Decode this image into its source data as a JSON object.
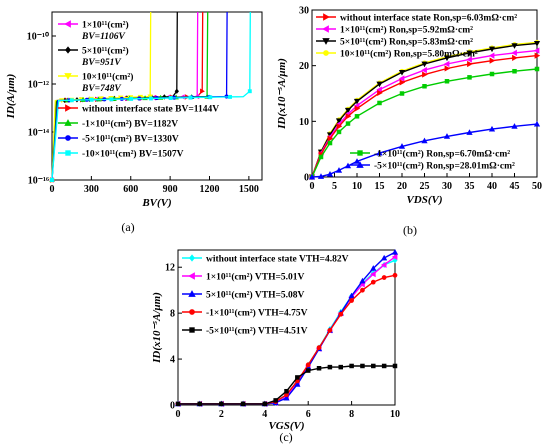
{
  "chart_data": [
    {
      "panel": "(a)",
      "type": "line",
      "xlabel": "BV(V)",
      "ylabel": "ID(A/μm)",
      "xlim": [
        0,
        1600
      ],
      "ylim": [
        1e-16,
        1e-09
      ],
      "yscale": "log",
      "xticks": [
        "0",
        "300",
        "600",
        "900",
        "1200",
        "1500"
      ],
      "yticks": [
        "10⁻¹⁶",
        "10⁻¹⁴",
        "10⁻¹²",
        "10⁻¹⁰"
      ],
      "legend_top": [
        {
          "label": "1×10¹¹(cm²)",
          "sub": "BV=1106V",
          "color": "#ff00ff",
          "marker": "triangle-left"
        },
        {
          "label": "5×10¹¹(cm²)",
          "sub": "BV=951V",
          "color": "#000000",
          "marker": "diamond"
        },
        {
          "label": "10×10¹¹(cm²)",
          "sub": "BV=748V",
          "color": "#ffff00",
          "marker": "triangle-down"
        }
      ],
      "legend_bottom": [
        {
          "label": "without interface state",
          "sub": "BV=1144V",
          "color": "#ff0000",
          "marker": "triangle-right"
        },
        {
          "label": "-1×10¹¹(cm²)",
          "sub": "BV=1182V",
          "color": "#00cc00",
          "marker": "triangle-up"
        },
        {
          "label": "-5×10¹¹(cm²)",
          "sub": "BV=1330V",
          "color": "#0000ff",
          "marker": "circle"
        },
        {
          "label": "-10×10¹¹(cm²)",
          "sub": "BV=1507V",
          "color": "#00ffff",
          "marker": "square"
        }
      ],
      "series": [
        {
          "name": "without interface state",
          "bv": 1144,
          "color": "#ff0000"
        },
        {
          "name": "1×10¹¹(cm²)",
          "bv": 1106,
          "color": "#ff00ff"
        },
        {
          "name": "5×10¹¹(cm²)",
          "bv": 951,
          "color": "#000000"
        },
        {
          "name": "10×10¹¹(cm²)",
          "bv": 748,
          "color": "#ffff00"
        },
        {
          "name": "-1×10¹¹(cm²)",
          "bv": 1182,
          "color": "#00cc00"
        },
        {
          "name": "-5×10¹¹(cm²)",
          "bv": 1330,
          "color": "#0000ff"
        },
        {
          "name": "-10×10¹¹(cm²)",
          "bv": 1507,
          "color": "#00ffff"
        }
      ]
    },
    {
      "panel": "(b)",
      "type": "line",
      "xlabel": "VDS(V)",
      "ylabel": "ID(x10⁻⁵A/μm)",
      "xlim": [
        0,
        50
      ],
      "ylim": [
        0,
        30
      ],
      "xticks": [
        "0",
        "5",
        "10",
        "15",
        "20",
        "25",
        "30",
        "35",
        "40",
        "45",
        "50"
      ],
      "yticks": [
        "0",
        "10",
        "20",
        "30"
      ],
      "legend_top": [
        {
          "label": "without interface state",
          "extra": "Ron,sp=6.03mΩ·cm²",
          "color": "#ff0000",
          "marker": "triangle-right"
        },
        {
          "label": "1×10¹¹(cm²)",
          "extra": "Ron,sp=5.92mΩ·cm²",
          "color": "#ff00ff",
          "marker": "triangle-left"
        },
        {
          "label": "5×10¹¹(cm²)",
          "extra": "Ron,sp=5.83mΩ·cm²",
          "color": "#000000",
          "marker": "triangle-down"
        },
        {
          "label": "10×10¹¹(cm²)",
          "extra": "Ron,sp=5.80mΩ·cm²",
          "color": "#ffff00",
          "marker": "circle"
        }
      ],
      "legend_bottom": [
        {
          "label": "-1×10¹¹(cm²)",
          "extra": "Ron,sp=6.70mΩ·cm²",
          "color": "#00cc00",
          "marker": "square"
        },
        {
          "label": "-5×10¹¹(cm²)",
          "extra": "Ron,sp=28.01mΩ·cm²",
          "color": "#0000ff",
          "marker": "triangle-up"
        }
      ],
      "x": [
        0,
        2,
        4,
        6,
        8,
        10,
        15,
        20,
        25,
        30,
        35,
        40,
        45,
        50
      ],
      "series": [
        {
          "name": "10×10¹¹(cm²)",
          "color": "#ffff00",
          "values": [
            0,
            4.6,
            7.8,
            10.3,
            12.2,
            13.8,
            16.9,
            19.0,
            20.5,
            21.6,
            22.5,
            23.2,
            23.8,
            24.2
          ]
        },
        {
          "name": "5×10¹¹(cm²)",
          "color": "#000000",
          "values": [
            0,
            4.5,
            7.6,
            10.1,
            12.0,
            13.6,
            16.7,
            18.8,
            20.3,
            21.4,
            22.3,
            23.0,
            23.6,
            24.0
          ]
        },
        {
          "name": "1×10¹¹(cm²)",
          "color": "#ff00ff",
          "values": [
            0,
            4.3,
            7.2,
            9.5,
            11.3,
            12.8,
            15.7,
            17.7,
            19.2,
            20.3,
            21.1,
            21.8,
            22.3,
            22.7
          ]
        },
        {
          "name": "without interface state",
          "color": "#ff0000",
          "values": [
            0,
            4.1,
            6.9,
            9.1,
            10.9,
            12.3,
            15.1,
            17.0,
            18.4,
            19.5,
            20.3,
            20.9,
            21.4,
            21.8
          ]
        },
        {
          "name": "-1×10¹¹(cm²)",
          "color": "#00cc00",
          "values": [
            0,
            3.6,
            6.1,
            8.1,
            9.6,
            10.9,
            13.3,
            15.0,
            16.3,
            17.2,
            17.9,
            18.5,
            19.0,
            19.4
          ]
        },
        {
          "name": "-5×10¹¹(cm²)",
          "color": "#0000ff",
          "values": [
            0,
            0.1,
            0.5,
            1.2,
            2.0,
            2.8,
            4.3,
            5.5,
            6.5,
            7.3,
            8.0,
            8.6,
            9.1,
            9.5
          ]
        }
      ]
    },
    {
      "panel": "(c)",
      "type": "line",
      "xlabel": "VGS(V)",
      "ylabel": "ID(x10⁻⁵A/μm)",
      "xlim": [
        0,
        10
      ],
      "ylim": [
        0,
        13.5
      ],
      "xticks": [
        "0",
        "2",
        "4",
        "6",
        "8",
        "10"
      ],
      "yticks": [
        "0",
        "4",
        "8",
        "12"
      ],
      "legend": [
        {
          "label": "without interface state",
          "extra": "VTH=4.82V",
          "color": "#00ffff",
          "marker": "diamond"
        },
        {
          "label": "1×10¹¹(cm²)",
          "extra": "VTH=5.01V",
          "color": "#ff00ff",
          "marker": "triangle-left"
        },
        {
          "label": "5×10¹¹(cm²)",
          "extra": "VTH=5.08V",
          "color": "#0000ff",
          "marker": "triangle-up"
        },
        {
          "label": "-1×10¹¹(cm²)",
          "extra": "VTH=4.75V",
          "color": "#ff0000",
          "marker": "circle"
        },
        {
          "label": "-5×10¹¹(cm²)",
          "extra": "VTH=4.51V",
          "color": "#000000",
          "marker": "square"
        }
      ],
      "x": [
        0,
        1,
        2,
        3,
        4,
        4.5,
        5,
        5.5,
        6,
        6.5,
        7,
        7.5,
        8,
        8.5,
        9,
        9.5,
        10
      ],
      "series": [
        {
          "name": "without interface state",
          "color": "#00ffff",
          "values": [
            0.1,
            0.1,
            0.1,
            0.1,
            0.1,
            0.2,
            0.8,
            2.0,
            3.5,
            5.0,
            6.6,
            8.1,
            9.5,
            10.6,
            11.5,
            12.2,
            12.6
          ]
        },
        {
          "name": "1×10¹¹(cm²)",
          "color": "#ff00ff",
          "values": [
            0.1,
            0.1,
            0.1,
            0.1,
            0.1,
            0.2,
            0.7,
            1.9,
            3.4,
            4.9,
            6.5,
            8.0,
            9.4,
            10.5,
            11.4,
            12.2,
            12.9
          ]
        },
        {
          "name": "5×10¹¹(cm²)",
          "color": "#0000ff",
          "values": [
            0.1,
            0.1,
            0.1,
            0.1,
            0.1,
            0.2,
            0.6,
            1.8,
            3.3,
            4.9,
            6.5,
            8.0,
            9.5,
            10.8,
            11.9,
            12.8,
            13.3
          ]
        },
        {
          "name": "-1×10¹¹(cm²)",
          "color": "#ff0000",
          "values": [
            0.1,
            0.1,
            0.1,
            0.1,
            0.1,
            0.3,
            0.9,
            2.1,
            3.5,
            5.0,
            6.5,
            7.9,
            9.1,
            10.0,
            10.7,
            11.1,
            11.3
          ]
        },
        {
          "name": "-5×10¹¹(cm²)",
          "color": "#000000",
          "values": [
            0.1,
            0.1,
            0.1,
            0.1,
            0.1,
            0.4,
            1.2,
            2.4,
            3.0,
            3.2,
            3.3,
            3.3,
            3.4,
            3.4,
            3.4,
            3.4,
            3.4
          ]
        }
      ]
    }
  ]
}
